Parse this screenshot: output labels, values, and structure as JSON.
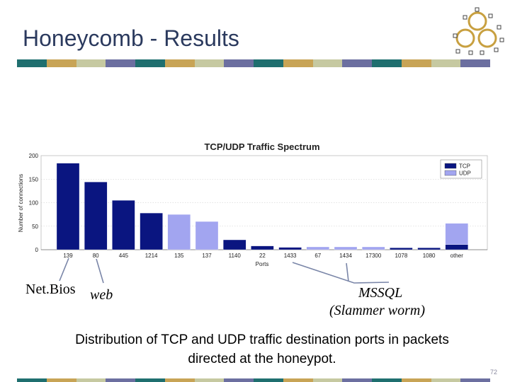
{
  "slide": {
    "title": "Honeycomb - Results",
    "stripe_colors": [
      "#1f6f6f",
      "#c8a456",
      "#c6c9a1",
      "#6c6fa0"
    ],
    "page_number": "72"
  },
  "annotations": {
    "netbios": "Net.Bios",
    "web": "web",
    "mssql_line1": "MSSQL",
    "mssql_line2": "(Slammer worm)"
  },
  "caption": {
    "line1": "Distribution of TCP and UDP traffic destination ports in packets",
    "line2": "directed at the honeypot."
  },
  "chart_data": {
    "type": "bar",
    "stacked": true,
    "title": "TCP/UDP Traffic Spectrum",
    "xlabel": "Ports",
    "ylabel": "Number of connections",
    "ylim": [
      0,
      200
    ],
    "yticks": [
      0,
      50,
      100,
      150,
      200
    ],
    "grid": true,
    "legend_position": "top-right",
    "categories": [
      "139",
      "80",
      "445",
      "1214",
      "135",
      "137",
      "1140",
      "22",
      "1433",
      "67",
      "1434",
      "17300",
      "1078",
      "1080",
      "other"
    ],
    "series": [
      {
        "name": "TCP",
        "color": "#0a1580",
        "values": [
          184,
          144,
          105,
          78,
          0,
          0,
          21,
          8,
          5,
          0,
          0,
          0,
          4,
          4,
          11
        ]
      },
      {
        "name": "UDP",
        "color": "#a2a5f0",
        "values": [
          0,
          0,
          0,
          0,
          75,
          60,
          0,
          0,
          0,
          6,
          6,
          6,
          0,
          0,
          45
        ]
      }
    ]
  }
}
